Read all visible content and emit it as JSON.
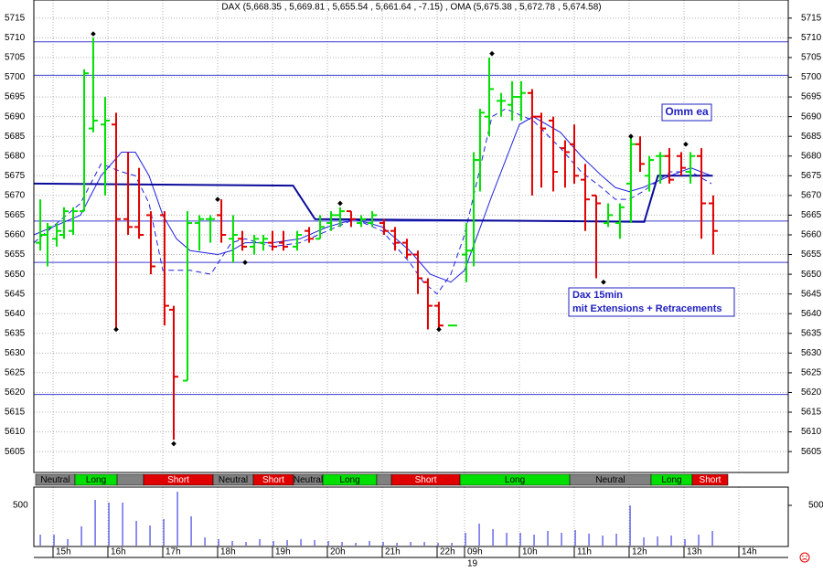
{
  "chart_data": [
    {
      "type": "ohlc",
      "title": "DAX (5,668.35 , 5,669.81 , 5,655.54 , 5,661.64 , -7.15) , OMA (5,675.38 , 5,672.78 , 5,674.58)",
      "x": [
        -0.93,
        -0.4,
        0.27,
        0.8,
        1.47,
        2.27,
        2.93,
        3.8,
        4.6,
        5.47,
        6.27,
        7.13,
        8.13,
        8.8,
        9.8,
        10.67,
        11.47,
        12.27,
        13.13,
        13.8,
        14.67,
        15.33,
        16,
        16.8,
        17.8,
        18.67,
        19.47,
        20.27,
        20.93,
        21.73,
        22.47,
        23.27,
        24.13,
        24.93,
        25.8,
        26.6,
        27.33,
        28.13,
        29.13,
        30.13,
        30.67,
        31.13,
        31.8,
        32.67,
        33.47,
        34.13,
        34.93,
        35.6,
        36.47,
        37.33,
        38,
        38.8,
        39.6,
        40.47,
        41.33,
        42.13,
        42.8,
        43.47,
        44.27,
        44.93,
        45.8,
        46.47,
        47.27,
        48.13
      ],
      "open": [
        5658,
        5660,
        5659,
        5660,
        5661,
        5666,
        5687,
        5688,
        5688,
        5664,
        5662,
        5665,
        5665,
        5641,
        5623,
        5663,
        5664,
        5665,
        5659,
        5659,
        5657,
        5658,
        5658,
        5658,
        5657,
        5661,
        5659,
        5663,
        5665,
        5666,
        5663,
        5663,
        5663,
        5661,
        5658,
        5655,
        5648,
        5642,
        5637,
        5655,
        5656,
        5679,
        5690,
        5694,
        5693,
        5695,
        5696,
        5690,
        5689,
        5682,
        5683,
        5674,
        5670,
        5663,
        5663,
        5673,
        5683,
        5675,
        5680,
        5680,
        5680,
        5676,
        5680,
        5668
      ],
      "high": [
        5669,
        5663,
        5663,
        5667,
        5667,
        5702,
        5710,
        5695,
        5691,
        5681,
        5677,
        5666,
        5666,
        5642,
        5666,
        5665,
        5665,
        5669,
        5665,
        5661,
        5660,
        5660,
        5661,
        5661,
        5661,
        5662,
        5665,
        5666,
        5667,
        5666,
        5665,
        5666,
        5664,
        5662,
        5659,
        5656,
        5649,
        5643,
        5637,
        5663,
        5681,
        5692,
        5705,
        5696,
        5699,
        5699,
        5697,
        5691,
        5690,
        5684,
        5688,
        5678,
        5670,
        5668,
        5668,
        5685,
        5685,
        5680,
        5681,
        5682,
        5681,
        5681,
        5682,
        5670
      ],
      "low": [
        5656,
        5652,
        5657,
        5659,
        5660,
        5666,
        5686,
        5670,
        5636,
        5660,
        5659,
        5650,
        5637,
        5608,
        5623,
        5656,
        5658,
        5658,
        5653,
        5656,
        5655,
        5656,
        5656,
        5656,
        5656,
        5658,
        5659,
        5661,
        5662,
        5662,
        5662,
        5662,
        5660,
        5656,
        5654,
        5645,
        5636,
        5636,
        5637,
        5648,
        5652,
        5671,
        5685,
        5690,
        5689,
        5689,
        5670,
        5672,
        5671,
        5672,
        5673,
        5661,
        5649,
        5662,
        5659,
        5663,
        5676,
        5671,
        5673,
        5673,
        5675,
        5673,
        5659,
        5655
      ],
      "close": [
        5660,
        5662,
        5661,
        5666,
        5666,
        5701,
        5689,
        5689,
        5664,
        5662,
        5660,
        5652,
        5642,
        5624,
        5663,
        5664,
        5664,
        5660,
        5660,
        5657,
        5659,
        5659,
        5657,
        5657,
        5660,
        5659,
        5662,
        5665,
        5666,
        5664,
        5664,
        5665,
        5661,
        5658,
        5655,
        5649,
        5642,
        5637,
        5637,
        5656,
        5679,
        5691,
        5697,
        5694,
        5695,
        5696,
        5690,
        5687,
        5676,
        5681,
        5675,
        5669,
        5668,
        5665,
        5667,
        5683,
        5678,
        5679,
        5680,
        5674,
        5677,
        5680,
        5668,
        5661
      ],
      "up_color": "#00e000",
      "down_color": "#e00000",
      "xlim": [
        -1.4,
        53.6
      ],
      "xticks": [
        {
          "value": 0,
          "label": "15h"
        },
        {
          "value": 4,
          "label": "16h"
        },
        {
          "value": 8,
          "label": "17h"
        },
        {
          "value": 12,
          "label": "18h"
        },
        {
          "value": 16,
          "label": "19h"
        },
        {
          "value": 20,
          "label": "20h"
        },
        {
          "value": 24,
          "label": "21h"
        },
        {
          "value": 28,
          "label": "22h"
        },
        {
          "value": 30,
          "label": "09h"
        },
        {
          "value": 34,
          "label": "10h"
        },
        {
          "value": 38,
          "label": "11h"
        },
        {
          "value": 42,
          "label": "12h"
        },
        {
          "value": 46,
          "label": "13h"
        },
        {
          "value": 50,
          "label": "14h"
        }
      ],
      "x_sublabels": [
        {
          "value": 30,
          "label": "19"
        }
      ],
      "ylim": [
        5599.7,
        5719.6
      ],
      "yticks": [
        5605,
        5610,
        5615,
        5620,
        5625,
        5630,
        5635,
        5640,
        5645,
        5650,
        5655,
        5660,
        5665,
        5670,
        5675,
        5680,
        5685,
        5690,
        5695,
        5700,
        5705,
        5710,
        5715
      ],
      "grid": true,
      "levels": [
        5709,
        5700.5,
        5663.5,
        5653,
        5619.5
      ],
      "level_color": "#3a3ad0",
      "overlays": [
        {
          "color": "#2020e0",
          "dash": false,
          "width": 1,
          "x": [
            -1.4,
            2,
            3.5,
            5,
            6,
            7,
            8,
            9,
            10,
            12,
            13,
            14,
            16,
            18,
            20,
            22,
            24,
            26,
            27.5,
            29,
            30,
            32,
            34,
            35,
            37,
            38.5,
            40,
            41,
            42,
            43,
            45,
            46.5,
            48
          ],
          "values": [
            5660,
            5665,
            5675,
            5681,
            5681,
            5675,
            5665,
            5659,
            5656,
            5655,
            5656,
            5658,
            5658,
            5659,
            5662,
            5664,
            5662,
            5656,
            5650,
            5648,
            5651,
            5670,
            5688,
            5690,
            5686,
            5680,
            5675,
            5672,
            5671,
            5672,
            5675,
            5677,
            5675
          ]
        },
        {
          "color": "#2020e0",
          "dash": true,
          "width": 1,
          "x": [
            -1.4,
            2,
            3.5,
            5,
            6,
            7,
            8,
            9,
            10,
            11.5,
            13,
            14,
            16,
            18,
            20,
            22,
            24,
            26,
            27,
            28,
            29,
            30,
            31,
            32,
            33,
            35,
            37,
            38.5,
            40,
            41,
            42,
            43,
            45,
            46.5,
            48
          ],
          "values": [
            5658,
            5668,
            5678,
            5676,
            5675,
            5668,
            5651,
            5651,
            5651,
            5650,
            5658,
            5659,
            5657,
            5658,
            5661,
            5664,
            5661,
            5653,
            5648,
            5645,
            5650,
            5660,
            5675,
            5690,
            5692,
            5689,
            5682,
            5676,
            5672,
            5669,
            5669,
            5671,
            5676,
            5676,
            5673
          ]
        },
        {
          "color": "#0a0a9a",
          "dash": false,
          "width": 2,
          "x": [
            -1.4,
            17.5,
            19.1,
            43.1,
            44.1,
            48.1
          ],
          "values": [
            5673,
            5672.5,
            5664,
            5663.3,
            5675,
            5675
          ]
        }
      ],
      "pivots": {
        "x": [
          2.93,
          4.6,
          8.8,
          12,
          14,
          20.93,
          28.13,
          32,
          40.13,
          42.13,
          46.13
        ],
        "values": [
          5711,
          5636,
          5607,
          5669,
          5653,
          5668,
          5636,
          5706,
          5648,
          5685,
          5683
        ]
      },
      "annotations": [
        "Omm ea",
        "Dax 15min",
        "mit Extensions + Retracements"
      ],
      "signals": {
        "labels": [
          "Neutral",
          "Long",
          null,
          "Short",
          "Neutral",
          "Short",
          "Neutral",
          "Long",
          null,
          "Short",
          "Long",
          "Neutral",
          "Long",
          "Short"
        ],
        "starts": [
          -1.27,
          1.6,
          4.67,
          6.6,
          11.67,
          14.6,
          17.53,
          19.67,
          23.6,
          24.67,
          29.67,
          37.67,
          43.6,
          46.6
        ],
        "ends": [
          1.6,
          4.67,
          6.6,
          11.67,
          14.6,
          17.53,
          19.67,
          23.6,
          24.67,
          29.67,
          37.67,
          43.6,
          46.6,
          49.2
        ],
        "colors": [
          "#808080",
          "#00e000",
          "#808080",
          "#e00000",
          "#808080",
          "#e00000",
          "#808080",
          "#00e000",
          "#808080",
          "#e00000",
          "#00e000",
          "#808080",
          "#00e000",
          "#e00000"
        ]
      }
    },
    {
      "type": "bar",
      "x": [
        -0.93,
        0.07,
        1.07,
        2.07,
        3.07,
        4.07,
        5.07,
        6.07,
        7.07,
        8.07,
        9.07,
        10.07,
        11.07,
        12.07,
        13.07,
        14.07,
        15.07,
        16.07,
        17.07,
        18.07,
        19.07,
        20.07,
        21.07,
        22.07,
        23.07,
        24.07,
        25.07,
        26.07,
        27.07,
        28.07,
        29.07,
        30.07,
        31.07,
        32.07,
        33.07,
        34.07,
        35.07,
        36.07,
        37.07,
        38.07,
        39.07,
        40.07,
        41.07,
        42.07,
        43.07,
        44.07,
        45.07,
        46.07,
        47.07,
        48.07
      ],
      "values": [
        136,
        136,
        80,
        239,
        568,
        534,
        534,
        307,
        250,
        330,
        670,
        364,
        102,
        80,
        57,
        45,
        80,
        57,
        68,
        80,
        68,
        57,
        45,
        34,
        57,
        45,
        34,
        45,
        45,
        34,
        34,
        159,
        273,
        205,
        159,
        159,
        136,
        182,
        159,
        193,
        148,
        125,
        148,
        500,
        102,
        114,
        125,
        80,
        136,
        182
      ],
      "color": "#2020e0",
      "ylim": [
        0,
        727
      ],
      "yticks": [
        500
      ]
    }
  ]
}
